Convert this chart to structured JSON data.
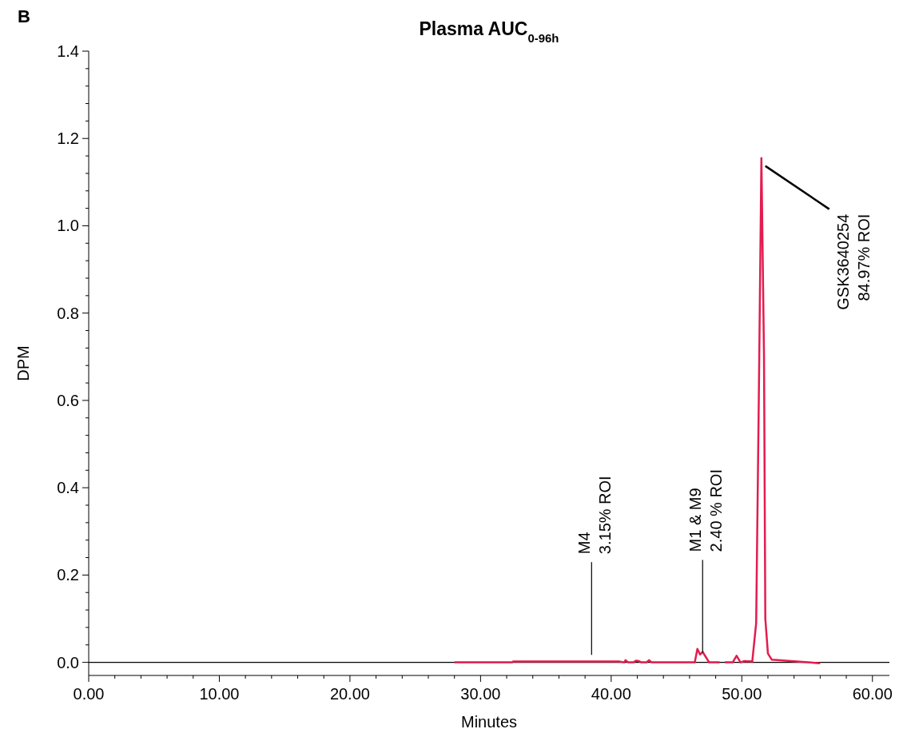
{
  "chart_data": {
    "type": "line",
    "title": "Plasma AUC$_{0-96h}$",
    "xlabel": "Minutes",
    "ylabel": "DPM",
    "x": [
      28,
      32.4,
      32.5,
      40.6,
      41.0,
      41.1,
      41.3,
      41.7,
      41.9,
      42.1,
      42.3,
      42.7,
      42.9,
      43.1,
      46.4,
      46.6,
      46.8,
      47.0,
      47.5,
      48.3,
      48.5,
      48.7,
      49.3,
      49.6,
      49.9,
      50.2,
      50.8,
      51.1,
      51.3,
      51.5,
      51.7,
      51.8,
      52.0,
      52.3,
      56.0
    ],
    "series": [
      {
        "color": "#e31c4f",
        "values": [
          0,
          0,
          0.002,
          0.002,
          0,
          0.005,
          0,
          0,
          0.004,
          0.003,
          0,
          0,
          0.005,
          0,
          0,
          0.031,
          0.018,
          0.024,
          0,
          0,
          null,
          0,
          0,
          0.015,
          0,
          0.003,
          0.002,
          0.09,
          0.6,
          1.155,
          0.7,
          0.1,
          0.02,
          0.006,
          -0.002
        ]
      }
    ],
    "xlim": [
      0,
      61.3
    ],
    "xticks": [
      {
        "value": 0,
        "label": "0.00"
      },
      {
        "value": 2,
        "label": null
      },
      {
        "value": 4,
        "label": null
      },
      {
        "value": 6,
        "label": null
      },
      {
        "value": 8,
        "label": null
      },
      {
        "value": 10,
        "label": "10.00"
      },
      {
        "value": 12,
        "label": null
      },
      {
        "value": 14,
        "label": null
      },
      {
        "value": 16,
        "label": null
      },
      {
        "value": 18,
        "label": null
      },
      {
        "value": 20,
        "label": "20.00"
      },
      {
        "value": 22,
        "label": null
      },
      {
        "value": 24,
        "label": null
      },
      {
        "value": 26,
        "label": null
      },
      {
        "value": 28,
        "label": null
      },
      {
        "value": 30,
        "label": "30.00"
      },
      {
        "value": 32,
        "label": null
      },
      {
        "value": 34,
        "label": null
      },
      {
        "value": 36,
        "label": null
      },
      {
        "value": 38,
        "label": null
      },
      {
        "value": 40,
        "label": "40.00"
      },
      {
        "value": 42,
        "label": null
      },
      {
        "value": 44,
        "label": null
      },
      {
        "value": 46,
        "label": null
      },
      {
        "value": 48,
        "label": null
      },
      {
        "value": 50,
        "label": "50.00"
      },
      {
        "value": 52,
        "label": null
      },
      {
        "value": 54,
        "label": null
      },
      {
        "value": 56,
        "label": null
      },
      {
        "value": 58,
        "label": null
      },
      {
        "value": 60,
        "label": "60.00"
      }
    ],
    "ylim": [
      -0.03,
      1.4
    ],
    "yticks": [
      {
        "value": 0,
        "label": "0.0"
      },
      {
        "value": 0.04,
        "label": null
      },
      {
        "value": 0.08,
        "label": null
      },
      {
        "value": 0.12,
        "label": null
      },
      {
        "value": 0.16,
        "label": null
      },
      {
        "value": 0.2,
        "label": "0.2"
      },
      {
        "value": 0.24,
        "label": null
      },
      {
        "value": 0.28,
        "label": null
      },
      {
        "value": 0.32,
        "label": null
      },
      {
        "value": 0.36,
        "label": null
      },
      {
        "value": 0.4,
        "label": "0.4"
      },
      {
        "value": 0.44,
        "label": null
      },
      {
        "value": 0.48,
        "label": null
      },
      {
        "value": 0.52,
        "label": null
      },
      {
        "value": 0.56,
        "label": null
      },
      {
        "value": 0.6,
        "label": "0.6"
      },
      {
        "value": 0.64,
        "label": null
      },
      {
        "value": 0.68,
        "label": null
      },
      {
        "value": 0.72,
        "label": null
      },
      {
        "value": 0.76,
        "label": null
      },
      {
        "value": 0.8,
        "label": "0.8"
      },
      {
        "value": 0.84,
        "label": null
      },
      {
        "value": 0.88,
        "label": null
      },
      {
        "value": 0.92,
        "label": null
      },
      {
        "value": 0.96,
        "label": null
      },
      {
        "value": 1.0,
        "label": "1.0"
      },
      {
        "value": 1.04,
        "label": null
      },
      {
        "value": 1.08,
        "label": null
      },
      {
        "value": 1.12,
        "label": null
      },
      {
        "value": 1.16,
        "label": null
      },
      {
        "value": 1.2,
        "label": "1.2"
      },
      {
        "value": 1.24,
        "label": null
      },
      {
        "value": 1.28,
        "label": null
      },
      {
        "value": 1.32,
        "label": null
      },
      {
        "value": 1.36,
        "label": null
      },
      {
        "value": 1.4,
        "label": "1.4"
      }
    ],
    "ref_lines": [
      {
        "axis": "y",
        "value": 0,
        "color": "#000000"
      }
    ],
    "annotations": [
      "B",
      {
        "text": "M4\n3.15% ROI",
        "x": 38.5,
        "y": 0.01
      },
      {
        "text": "M1 & M9\n2.40 % ROI",
        "x": 47.0,
        "y": 0.015
      },
      {
        "text": "GSK3640254\n84.97% ROI",
        "x": 51.8,
        "y": 1.137
      }
    ],
    "grid": false,
    "legend": false,
    "marker": "none",
    "line_style": "solid"
  }
}
